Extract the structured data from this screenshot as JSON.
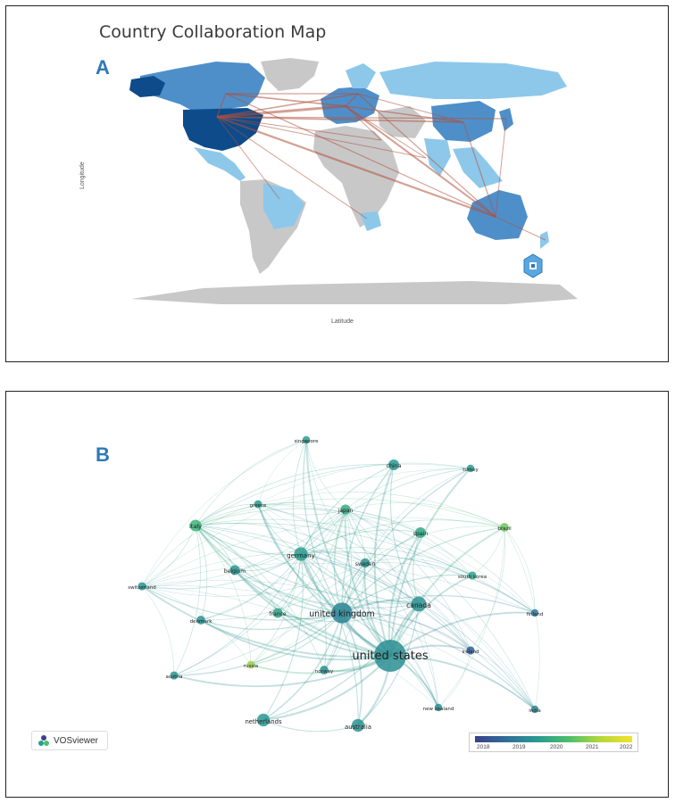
{
  "panel_a": {
    "letter": "A",
    "title": "Country Collaboration Map",
    "y_label": "Longitude",
    "x_label": "Latitude"
  },
  "panel_b": {
    "letter": "B",
    "logo_text": "VOSviewer",
    "legend_ticks": [
      "2018",
      "2019",
      "2020",
      "2021",
      "2022"
    ],
    "nodes": [
      {
        "label": "united states",
        "weight": 10,
        "year": 2019.7
      },
      {
        "label": "united kingdom",
        "weight": 6,
        "year": 2019.5
      },
      {
        "label": "canada",
        "weight": 4,
        "year": 2019.8
      },
      {
        "label": "germany",
        "weight": 3.5,
        "year": 2020.0
      },
      {
        "label": "australia",
        "weight": 3.2,
        "year": 2019.8
      },
      {
        "label": "netherlands",
        "weight": 3.2,
        "year": 2019.9
      },
      {
        "label": "italy",
        "weight": 2.8,
        "year": 2020.6
      },
      {
        "label": "spain",
        "weight": 2.5,
        "year": 2020.3
      },
      {
        "label": "china",
        "weight": 2.5,
        "year": 2019.9
      },
      {
        "label": "japan",
        "weight": 2.2,
        "year": 2020.4
      },
      {
        "label": "france",
        "weight": 2.2,
        "year": 2020.2
      },
      {
        "label": "belgium",
        "weight": 2.2,
        "year": 2019.9
      },
      {
        "label": "sweden",
        "weight": 2,
        "year": 2019.8
      },
      {
        "label": "norway",
        "weight": 1.8,
        "year": 2019.7
      },
      {
        "label": "denmark",
        "weight": 1.8,
        "year": 2019.8
      },
      {
        "label": "switzerland",
        "weight": 1.6,
        "year": 2019.9
      },
      {
        "label": "austria",
        "weight": 1.6,
        "year": 2019.8
      },
      {
        "label": "russia",
        "weight": 1.5,
        "year": 2021.5
      },
      {
        "label": "greece",
        "weight": 1.5,
        "year": 2020.0
      },
      {
        "label": "singapore",
        "weight": 1.4,
        "year": 2020.0
      },
      {
        "label": "turkey",
        "weight": 1.4,
        "year": 2020.0
      },
      {
        "label": "brazil",
        "weight": 1.8,
        "year": 2021.2
      },
      {
        "label": "south korea",
        "weight": 1.6,
        "year": 2020.2
      },
      {
        "label": "finland",
        "weight": 1.4,
        "year": 2019.2
      },
      {
        "label": "ireland",
        "weight": 1.6,
        "year": 2018.6
      },
      {
        "label": "new zealand",
        "weight": 1.4,
        "year": 2019.7
      },
      {
        "label": "india",
        "weight": 1.4,
        "year": 2019.5
      }
    ]
  },
  "colors": {
    "usa": "#0d4b8a",
    "mid_blue": "#4f8fc9",
    "light_blue": "#8dc8ea",
    "gray": "#c8c8c8",
    "link": "#b0503c"
  }
}
